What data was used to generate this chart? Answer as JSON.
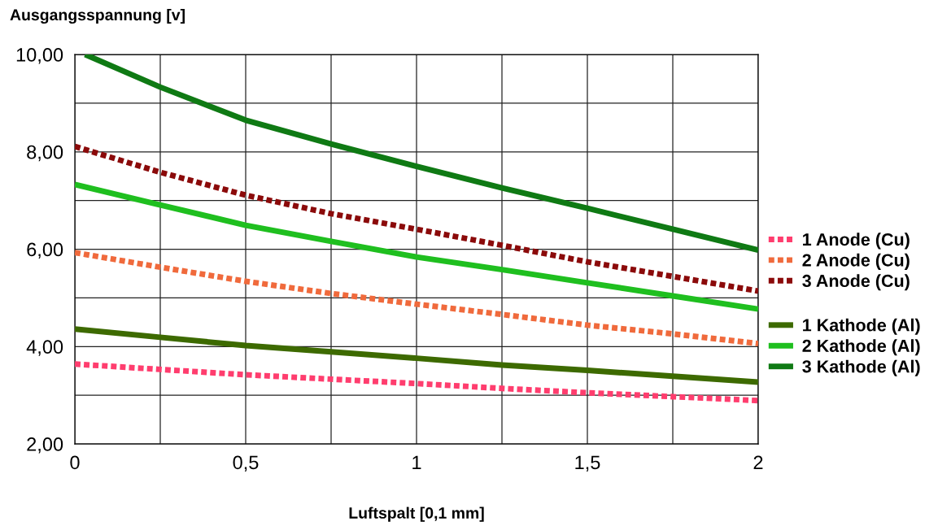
{
  "chart_data": {
    "type": "line",
    "ylabel": "Ausgangsspannung [v]",
    "xlabel": "Luftspalt [0,1 mm]",
    "x": [
      0,
      0.25,
      0.5,
      0.75,
      1,
      1.25,
      1.5,
      1.75,
      2
    ],
    "xlim": [
      0,
      2
    ],
    "ylim": [
      2,
      10
    ],
    "xticks": [
      {
        "value": 0,
        "label": "0"
      },
      {
        "value": 0.25,
        "label": null
      },
      {
        "value": 0.5,
        "label": "0,5"
      },
      {
        "value": 0.75,
        "label": null
      },
      {
        "value": 1,
        "label": "1"
      },
      {
        "value": 1.25,
        "label": null
      },
      {
        "value": 1.5,
        "label": "1,5"
      },
      {
        "value": 1.75,
        "label": null
      },
      {
        "value": 2,
        "label": "2"
      }
    ],
    "yticks": [
      {
        "value": 2,
        "label": "2,00"
      },
      {
        "value": 3,
        "label": null
      },
      {
        "value": 4,
        "label": "4,00"
      },
      {
        "value": 5,
        "label": null
      },
      {
        "value": 6,
        "label": "6,00"
      },
      {
        "value": 7,
        "label": null
      },
      {
        "value": 8,
        "label": "8,00"
      },
      {
        "value": 9,
        "label": null
      },
      {
        "value": 10,
        "label": "10,00"
      }
    ],
    "grid": true,
    "legend": "right",
    "marker": "none",
    "series": [
      {
        "name": "1 Anode (Cu)",
        "color": "#ff3d6e",
        "line_style": "dotted",
        "values": [
          3.64,
          3.53,
          3.42,
          3.33,
          3.24,
          3.14,
          3.05,
          2.97,
          2.89
        ]
      },
      {
        "name": "2 Anode (Cu)",
        "color": "#f06a3c",
        "line_style": "dotted",
        "values": [
          5.93,
          5.63,
          5.34,
          5.09,
          4.87,
          4.66,
          4.44,
          4.26,
          4.06
        ]
      },
      {
        "name": "3 Anode (Cu)",
        "color": "#8b0a0a",
        "line_style": "dotted",
        "values": [
          8.11,
          7.58,
          7.11,
          6.73,
          6.41,
          6.08,
          5.74,
          5.44,
          5.14
        ]
      },
      {
        "name": "1 Kathode (Al)",
        "color": "#3d6a00",
        "line_style": "solid",
        "values": [
          4.36,
          4.19,
          4.02,
          3.89,
          3.76,
          3.62,
          3.51,
          3.39,
          3.27
        ]
      },
      {
        "name": "2 Kathode (Al)",
        "color": "#1fbf1f",
        "line_style": "solid",
        "values": [
          7.33,
          6.91,
          6.49,
          6.16,
          5.84,
          5.58,
          5.31,
          5.04,
          4.77
        ]
      },
      {
        "name": "3 Kathode (Al)",
        "color": "#0f7a14",
        "line_style": "solid",
        "x": [
          0.03,
          0.25,
          0.5,
          0.75,
          1,
          1.25,
          1.5,
          1.75,
          2
        ],
        "values": [
          10.0,
          9.33,
          8.65,
          8.16,
          7.7,
          7.26,
          6.84,
          6.41,
          5.98
        ]
      }
    ]
  }
}
